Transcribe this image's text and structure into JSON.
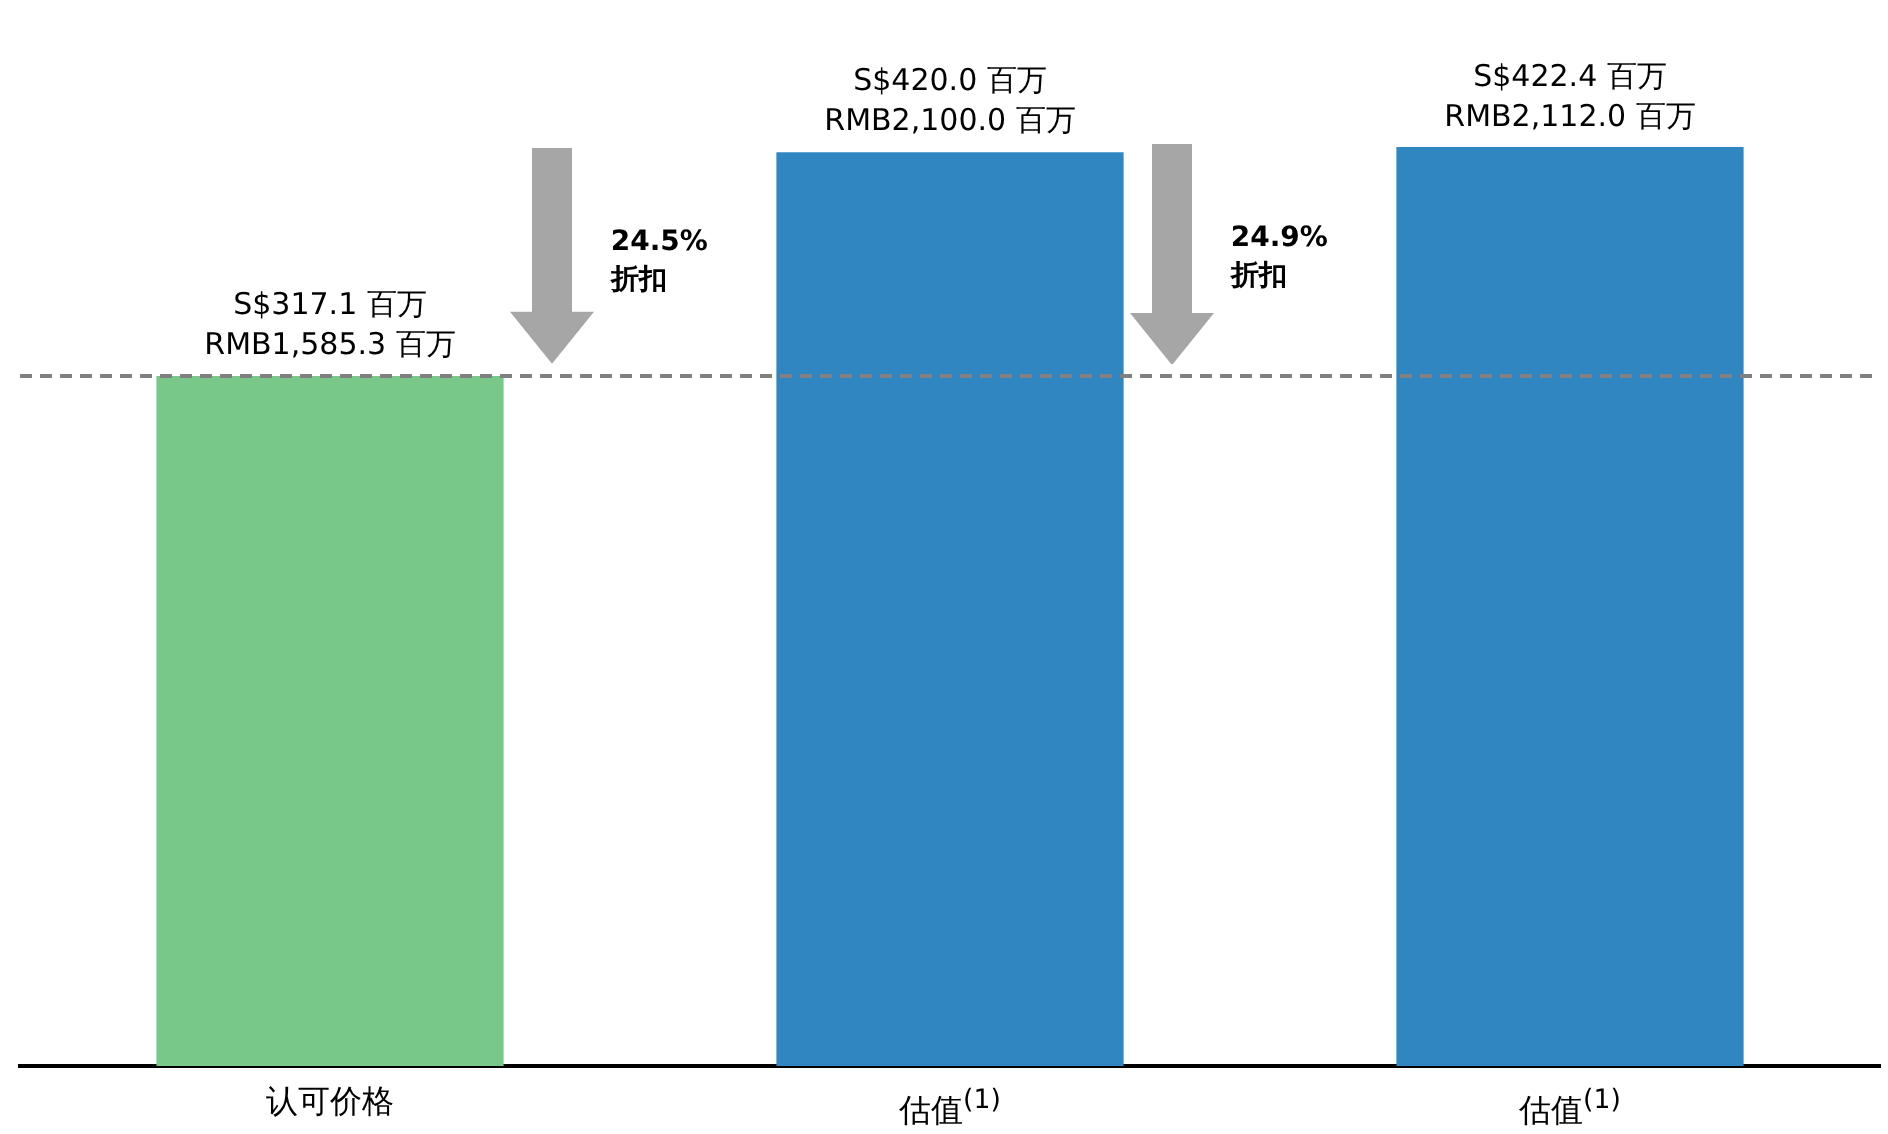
{
  "chart_data": {
    "type": "bar",
    "categories": [
      "认可价格",
      "估值$^{(1)}$",
      "估值$^{(1)}$"
    ],
    "values": [
      317.1,
      420.0,
      422.4
    ],
    "colors": [
      "#78c88a",
      "#2f86c0",
      "#2f86c0"
    ],
    "value_labels": [
      "S$317.1 百万\nRMB1,585.3 百万",
      "S$420.0 百万\nRMB2,100.0 百万",
      "S$422.4 百万\nRMB2,112.0 百万"
    ],
    "ref_lines": [
      {
        "axis": "y",
        "value": 317.1,
        "color": "#808080",
        "line_style": "dashed"
      }
    ],
    "annotations": [
      "24.5%\n折扣",
      "24.9%\n折扣"
    ],
    "grid": false,
    "legend": false
  }
}
